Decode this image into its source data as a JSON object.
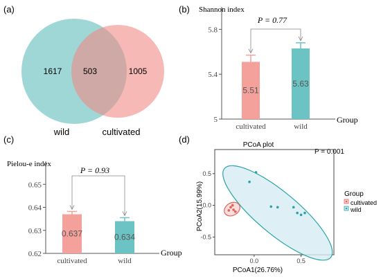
{
  "panels": {
    "a": "(a)",
    "b": "(b)",
    "c": "(c)",
    "d": "(d)"
  },
  "colors": {
    "wild": "#7fc9c9",
    "cultivated": "#f08a84",
    "bar_wild": "#6cc3c3",
    "bar_cultivated": "#f4a19b",
    "ellipse_wild": "#d6ecf3",
    "ellipse_wild_stroke": "#29a3a6",
    "ellipse_cult": "#f7d6d3",
    "ellipse_cult_stroke": "#e0615a"
  },
  "chart_data": [
    {
      "type": "venn",
      "sets": [
        {
          "name": "wild",
          "unique": "1617"
        },
        {
          "name": "cultivated",
          "unique": "1005"
        }
      ],
      "intersection": "503"
    },
    {
      "type": "bar",
      "ylabel": "Shannon index",
      "xlabel": "Group",
      "categories": [
        "cultivated",
        "wild"
      ],
      "values": [
        5.51,
        5.63
      ],
      "value_labels": [
        "5.51",
        "5.63"
      ],
      "errors": [
        0.06,
        0.05
      ],
      "ylim": [
        5.0,
        6.0
      ],
      "yticks": [
        "5",
        "5.4",
        "5.8"
      ],
      "ytick_values": [
        5.0,
        5.4,
        5.8
      ],
      "pvalue": "P = 0.77"
    },
    {
      "type": "bar",
      "ylabel": "Pielou-e index",
      "xlabel": "Group",
      "categories": [
        "cultivated",
        "wild"
      ],
      "values": [
        0.637,
        0.634
      ],
      "value_labels": [
        "0.637",
        "0.634"
      ],
      "errors": [
        0.0012,
        0.0015
      ],
      "ylim": [
        0.62,
        0.66
      ],
      "yticks": [
        "0.62",
        "0.63",
        "0.64",
        "0.65"
      ],
      "ytick_values": [
        0.62,
        0.63,
        0.64,
        0.65
      ],
      "pvalue": "P = 0.93"
    },
    {
      "type": "scatter",
      "title": "PCoA plot",
      "xlabel": "PCoA1(26.76%)",
      "ylabel": "PCoA2(15.99%)",
      "pvalue": "P = 0.001",
      "xlim": [
        -0.42,
        0.85
      ],
      "ylim": [
        -0.78,
        0.88
      ],
      "xticks": [
        0.0,
        0.5
      ],
      "xtick_labels": [
        "0.0",
        "0.5"
      ],
      "yticks": [
        0.5,
        0.0,
        -0.5
      ],
      "ytick_labels": [
        "0.5",
        "0.0",
        "-0.5"
      ],
      "legend_title": "Group",
      "series": [
        {
          "name": "cultivated",
          "points": [
            [
              -0.27,
              -0.08
            ],
            [
              -0.25,
              -0.03
            ],
            [
              -0.23,
              0.0
            ],
            [
              -0.22,
              -0.07
            ],
            [
              -0.2,
              -0.1
            ]
          ]
        },
        {
          "name": "wild",
          "points": [
            [
              -0.05,
              0.37
            ],
            [
              0.02,
              0.52
            ],
            [
              0.18,
              -0.02
            ],
            [
              0.25,
              -0.03
            ],
            [
              0.42,
              -0.03
            ],
            [
              0.46,
              -0.12
            ],
            [
              0.5,
              -0.15
            ],
            [
              0.54,
              -0.12
            ]
          ]
        }
      ]
    }
  ]
}
